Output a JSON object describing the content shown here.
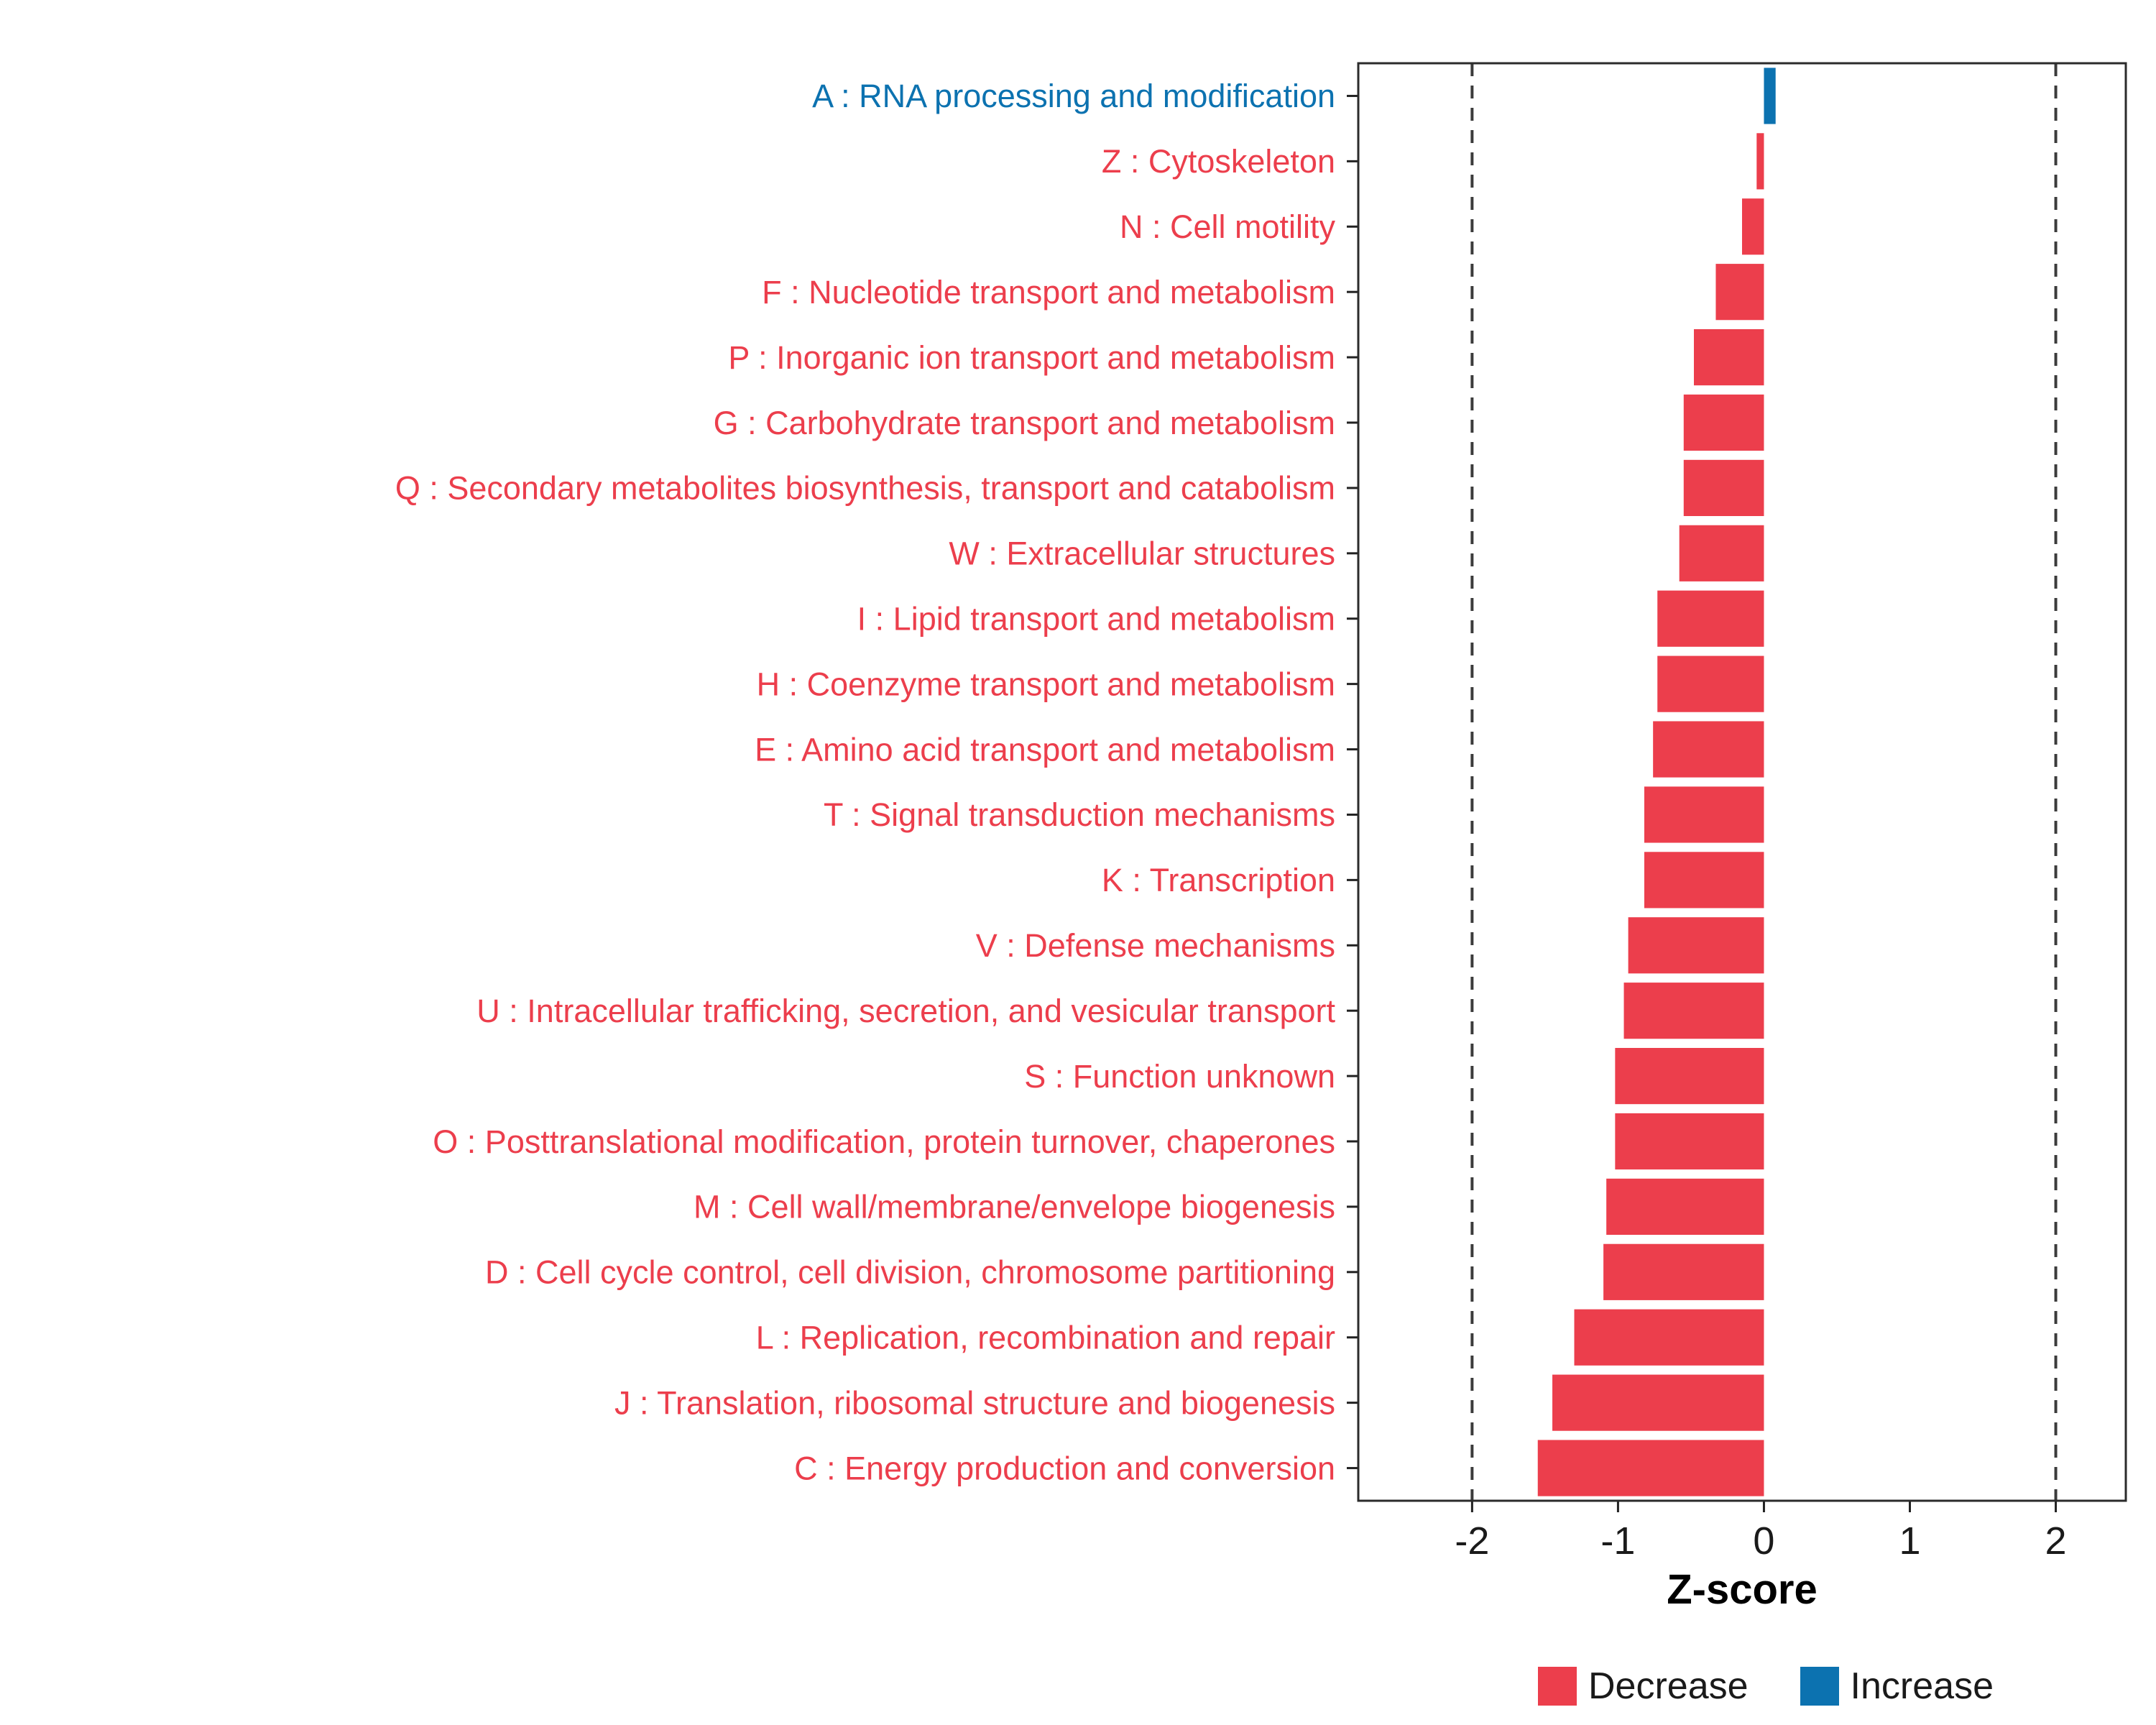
{
  "chart_data": {
    "type": "bar",
    "orientation": "horizontal",
    "title": "",
    "xlabel": "Z-score",
    "ylabel": "",
    "xlim": [
      -2.78,
      2.48
    ],
    "x_ticks": [
      -2,
      -1,
      0,
      1,
      2
    ],
    "reference_lines": [
      -2,
      2
    ],
    "grid": "off",
    "legend_position": "bottom-right",
    "colors": {
      "decrease": "#EC3E4C",
      "increase": "#0C72B0"
    },
    "legend": [
      {
        "label": "Decrease",
        "color": "#EC3E4C"
      },
      {
        "label": "Increase",
        "color": "#0C72B0"
      }
    ],
    "categories": [
      {
        "label": "A : RNA processing and modification",
        "value": 0.08,
        "direction": "Increase"
      },
      {
        "label": "Z : Cytoskeleton",
        "value": -0.05,
        "direction": "Decrease"
      },
      {
        "label": "N : Cell motility",
        "value": -0.15,
        "direction": "Decrease"
      },
      {
        "label": "F : Nucleotide transport and metabolism",
        "value": -0.33,
        "direction": "Decrease"
      },
      {
        "label": "P : Inorganic ion transport and metabolism",
        "value": -0.48,
        "direction": "Decrease"
      },
      {
        "label": "G : Carbohydrate transport and metabolism",
        "value": -0.55,
        "direction": "Decrease"
      },
      {
        "label": "Q : Secondary metabolites biosynthesis, transport and catabolism",
        "value": -0.55,
        "direction": "Decrease"
      },
      {
        "label": "W : Extracellular structures",
        "value": -0.58,
        "direction": "Decrease"
      },
      {
        "label": "I : Lipid transport and metabolism",
        "value": -0.73,
        "direction": "Decrease"
      },
      {
        "label": "H : Coenzyme transport and metabolism",
        "value": -0.73,
        "direction": "Decrease"
      },
      {
        "label": "E : Amino acid transport and metabolism",
        "value": -0.76,
        "direction": "Decrease"
      },
      {
        "label": "T : Signal transduction mechanisms",
        "value": -0.82,
        "direction": "Decrease"
      },
      {
        "label": "K : Transcription",
        "value": -0.82,
        "direction": "Decrease"
      },
      {
        "label": "V : Defense mechanisms",
        "value": -0.93,
        "direction": "Decrease"
      },
      {
        "label": "U : Intracellular trafficking, secretion, and vesicular transport",
        "value": -0.96,
        "direction": "Decrease"
      },
      {
        "label": "S : Function unknown",
        "value": -1.02,
        "direction": "Decrease"
      },
      {
        "label": "O : Posttranslational modification, protein turnover, chaperones",
        "value": -1.02,
        "direction": "Decrease"
      },
      {
        "label": "M : Cell wall/membrane/envelope biogenesis",
        "value": -1.08,
        "direction": "Decrease"
      },
      {
        "label": "D : Cell cycle control, cell division, chromosome partitioning",
        "value": -1.1,
        "direction": "Decrease"
      },
      {
        "label": "L : Replication, recombination and repair",
        "value": -1.3,
        "direction": "Decrease"
      },
      {
        "label": "J : Translation, ribosomal structure and biogenesis",
        "value": -1.45,
        "direction": "Decrease"
      },
      {
        "label": "C : Energy production and conversion",
        "value": -1.55,
        "direction": "Decrease"
      }
    ]
  }
}
